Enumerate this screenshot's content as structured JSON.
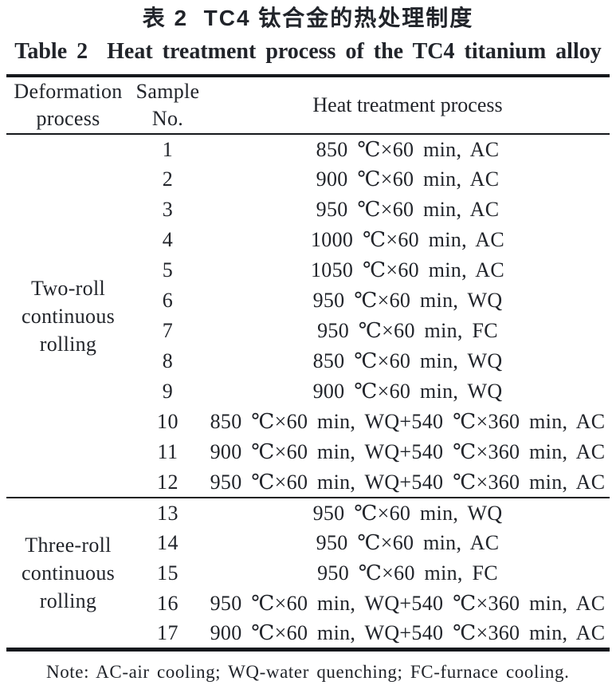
{
  "titles": {
    "chinese": "表 2  TC4 钛合金的热处理制度",
    "english": "Table 2  Heat treatment process of the TC4 titanium alloy"
  },
  "table": {
    "header": {
      "col1": [
        "Deformation",
        "process"
      ],
      "col2": [
        "Sample",
        "No."
      ],
      "col3": "Heat treatment process"
    },
    "sections": [
      {
        "label_lines": [
          "Two-roll",
          "continuous",
          "rolling"
        ],
        "rows": [
          {
            "no": "1",
            "process": "850 ℃×60 min, AC"
          },
          {
            "no": "2",
            "process": "900 ℃×60 min, AC"
          },
          {
            "no": "3",
            "process": "950 ℃×60 min, AC"
          },
          {
            "no": "4",
            "process": "1000 ℃×60 min, AC"
          },
          {
            "no": "5",
            "process": "1050 ℃×60 min, AC"
          },
          {
            "no": "6",
            "process": "950 ℃×60 min, WQ"
          },
          {
            "no": "7",
            "process": "950 ℃×60 min, FC"
          },
          {
            "no": "8",
            "process": "850 ℃×60 min, WQ"
          },
          {
            "no": "9",
            "process": "900 ℃×60 min, WQ"
          },
          {
            "no": "10",
            "process": "850 ℃×60 min, WQ+540 ℃×360 min, AC"
          },
          {
            "no": "11",
            "process": "900 ℃×60 min, WQ+540 ℃×360 min, AC"
          },
          {
            "no": "12",
            "process": "950 ℃×60 min, WQ+540 ℃×360 min, AC"
          }
        ]
      },
      {
        "label_lines": [
          "Three-roll",
          "continuous",
          "rolling"
        ],
        "rows": [
          {
            "no": "13",
            "process": "950 ℃×60 min, WQ"
          },
          {
            "no": "14",
            "process": "950 ℃×60 min, AC"
          },
          {
            "no": "15",
            "process": "950 ℃×60 min, FC"
          },
          {
            "no": "16",
            "process": "950 ℃×60 min, WQ+540 ℃×360 min, AC"
          },
          {
            "no": "17",
            "process": "900 ℃×60 min, WQ+540 ℃×360 min, AC"
          }
        ]
      }
    ]
  },
  "note": "Note: AC-air cooling; WQ-water quenching; FC-furnace cooling."
}
